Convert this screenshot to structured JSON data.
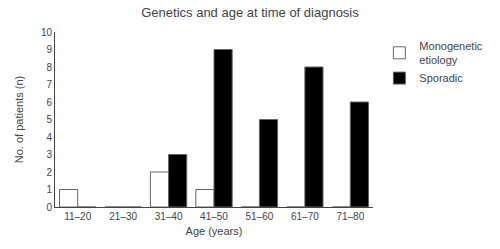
{
  "chart_data": {
    "type": "bar",
    "title": "Genetics and age at time of diagnosis",
    "xlabel": "Age (years)",
    "ylabel": "No. of patients (n)",
    "categories": [
      "11–20",
      "21–30",
      "31–40",
      "41–50",
      "51–60",
      "61–70",
      "71–80"
    ],
    "series": [
      {
        "name": "Monogenetic\netiology",
        "color": "#ffffff",
        "values": [
          1,
          0,
          2,
          1,
          0,
          0,
          0
        ]
      },
      {
        "name": "Sporadic",
        "color": "#000000",
        "values": [
          0,
          0,
          3,
          9,
          5,
          8,
          6
        ]
      }
    ],
    "ylim": [
      0,
      10
    ],
    "yticks": [
      0,
      1,
      2,
      3,
      4,
      5,
      6,
      7,
      8,
      9,
      10
    ],
    "grid": false,
    "legend": "right"
  }
}
